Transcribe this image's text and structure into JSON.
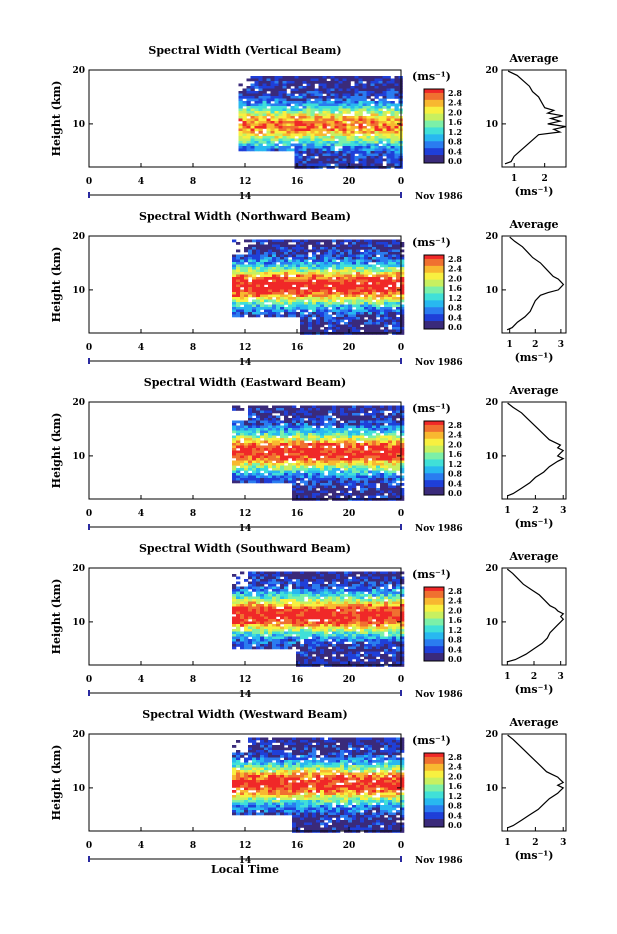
{
  "chart_data": {
    "type": "heatmap",
    "xlabel": "Local Time",
    "x_ticks": [
      "0",
      "4",
      "8",
      "12",
      "16",
      "20",
      "0"
    ],
    "date_ticks": [
      "14"
    ],
    "date_label": "Nov 1986",
    "ylabel": "Height (km)",
    "y_ticks": [
      "20",
      "10"
    ],
    "ylim": [
      2,
      20
    ],
    "colorbar": {
      "unit": "(ms⁻¹)",
      "labels": [
        "2.8",
        "2.4",
        "2.0",
        "1.6",
        "1.2",
        "0.8",
        "0.4",
        "0.0"
      ]
    },
    "average": {
      "title": "Average",
      "xlabel": "(ms⁻¹)",
      "y_ticks": [
        "20",
        "10"
      ]
    },
    "panels": [
      {
        "title": "Spectral Width (Vertical Beam)",
        "data_start_hour": 11.5,
        "data_low_start_hour": 15.7,
        "min_height_km": 5.3,
        "max_height_km": 19.3,
        "peak_height_km": 10,
        "peak_width": 2.6,
        "avg_ticks": [
          "1",
          "2"
        ],
        "avg_xlim": [
          0.6,
          2.7
        ],
        "average_profile": {
          "height_km": [
            2.6,
            3,
            4,
            5,
            6,
            7,
            8,
            8.5,
            9,
            9.5,
            10,
            10.5,
            11,
            11.5,
            12,
            12.5,
            13,
            14,
            15,
            16,
            17,
            18,
            19,
            19.8
          ],
          "value": [
            0.7,
            0.9,
            1.0,
            1.2,
            1.4,
            1.6,
            1.8,
            2.5,
            2.3,
            2.7,
            2.1,
            2.5,
            2.2,
            2.6,
            2.1,
            2.3,
            2.0,
            1.9,
            1.8,
            1.6,
            1.5,
            1.3,
            1.1,
            0.8
          ]
        }
      },
      {
        "title": "Spectral Width (Northward Beam)",
        "data_start_hour": 11.0,
        "data_low_start_hour": 16.0,
        "min_height_km": 5.3,
        "max_height_km": 19.8,
        "peak_height_km": 11,
        "peak_width": 3.1,
        "avg_ticks": [
          "1",
          "2",
          "3"
        ],
        "avg_xlim": [
          0.7,
          3.2
        ],
        "average_profile": {
          "height_km": [
            2.6,
            3,
            4,
            5,
            6,
            7,
            8,
            9,
            9.5,
            10,
            10.5,
            11,
            11.5,
            12,
            12.5,
            13,
            14,
            15,
            16,
            17,
            18,
            19,
            19.8
          ],
          "value": [
            0.9,
            1.1,
            1.3,
            1.6,
            1.8,
            1.9,
            2.0,
            2.2,
            2.5,
            2.9,
            3.0,
            3.1,
            3.0,
            2.9,
            2.7,
            2.6,
            2.4,
            2.2,
            1.9,
            1.7,
            1.5,
            1.2,
            1.0
          ]
        }
      },
      {
        "title": "Spectral Width (Eastward Beam)",
        "data_start_hour": 11.0,
        "data_low_start_hour": 15.6,
        "min_height_km": 5.3,
        "max_height_km": 19.8,
        "peak_height_km": 11,
        "peak_width": 3.0,
        "avg_ticks": [
          "1",
          "2",
          "3"
        ],
        "avg_xlim": [
          0.8,
          3.1
        ],
        "average_profile": {
          "height_km": [
            2.6,
            3,
            4,
            5,
            6,
            7,
            8,
            9,
            9.5,
            10,
            10.5,
            11,
            11.5,
            12,
            12.5,
            13,
            14,
            15,
            16,
            17,
            18,
            19,
            19.8
          ],
          "value": [
            1.0,
            1.2,
            1.5,
            1.8,
            2.0,
            2.3,
            2.5,
            2.8,
            3.0,
            2.8,
            2.9,
            3.0,
            2.8,
            2.9,
            2.7,
            2.5,
            2.3,
            2.1,
            1.9,
            1.7,
            1.5,
            1.2,
            1.0
          ]
        }
      },
      {
        "title": "Spectral Width (Southward Beam)",
        "data_start_hour": 11.0,
        "data_low_start_hour": 15.8,
        "min_height_km": 5.3,
        "max_height_km": 19.8,
        "peak_height_km": 11.5,
        "peak_width": 3.1,
        "avg_ticks": [
          "1",
          "2",
          "3"
        ],
        "avg_xlim": [
          0.8,
          3.2
        ],
        "average_profile": {
          "height_km": [
            2.6,
            3,
            4,
            5,
            6,
            7,
            8,
            9,
            9.5,
            10,
            10.5,
            11,
            11.5,
            12,
            12.5,
            13,
            14,
            15,
            16,
            17,
            18,
            19,
            19.8
          ],
          "value": [
            1.0,
            1.3,
            1.7,
            2.0,
            2.3,
            2.5,
            2.6,
            2.8,
            2.9,
            3.0,
            3.1,
            3.0,
            3.1,
            2.9,
            2.8,
            2.6,
            2.4,
            2.2,
            1.9,
            1.6,
            1.4,
            1.2,
            1.0
          ]
        }
      },
      {
        "title": "Spectral Width (Westward Beam)",
        "data_start_hour": 11.0,
        "data_low_start_hour": 15.6,
        "min_height_km": 5.3,
        "max_height_km": 19.8,
        "peak_height_km": 11,
        "peak_width": 3.0,
        "avg_ticks": [
          "1",
          "2",
          "3"
        ],
        "avg_xlim": [
          0.8,
          3.1
        ],
        "average_profile": {
          "height_km": [
            2.6,
            3,
            4,
            5,
            6,
            7,
            8,
            9,
            9.5,
            10,
            10.5,
            11,
            11.5,
            12,
            12.5,
            13,
            14,
            15,
            16,
            17,
            18,
            19,
            19.8
          ],
          "value": [
            1.0,
            1.2,
            1.5,
            1.8,
            2.1,
            2.3,
            2.5,
            2.8,
            2.9,
            3.0,
            2.8,
            3.0,
            2.9,
            2.8,
            2.6,
            2.4,
            2.2,
            2.0,
            1.8,
            1.6,
            1.4,
            1.2,
            1.0
          ]
        }
      }
    ]
  },
  "colors": {
    "scale": [
      "#3a2a7a",
      "#1f3fd8",
      "#2a7cf0",
      "#28b8f0",
      "#40e0d8",
      "#7cf0a8",
      "#c8f060",
      "#f8f040",
      "#f8b830",
      "#f07030",
      "#f02828"
    ],
    "axis_date_marker": "#2a2aa0"
  }
}
